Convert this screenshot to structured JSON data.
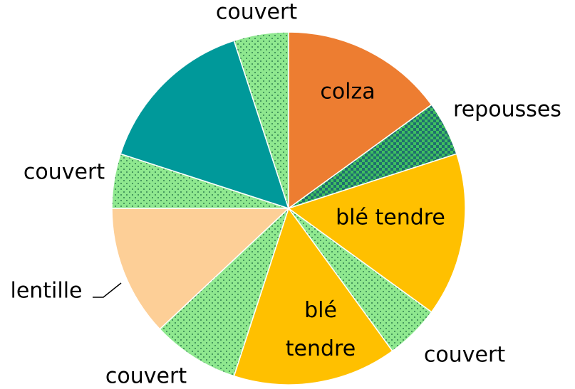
{
  "chart_data": {
    "type": "pie",
    "categories": [
      "colza",
      "repousses",
      "blé tendre",
      "couvert",
      "blé tendre",
      "couvert",
      "lentille",
      "couvert",
      null,
      "couvert"
    ],
    "values": [
      15,
      5,
      15,
      5,
      15,
      8,
      12,
      5,
      15,
      5
    ],
    "colors": [
      "#ed7d31",
      "#3fbf5f",
      "#ffc000",
      "#8fe88f",
      "#ffc000",
      "#8fe88f",
      "#fdcf97",
      "#8fe88f",
      "#00999a",
      "#8fe88f"
    ],
    "patterns": [
      "solid",
      "checker",
      "solid",
      "dots",
      "solid",
      "dots",
      "solid",
      "dots",
      "solid",
      "dots"
    ]
  }
}
